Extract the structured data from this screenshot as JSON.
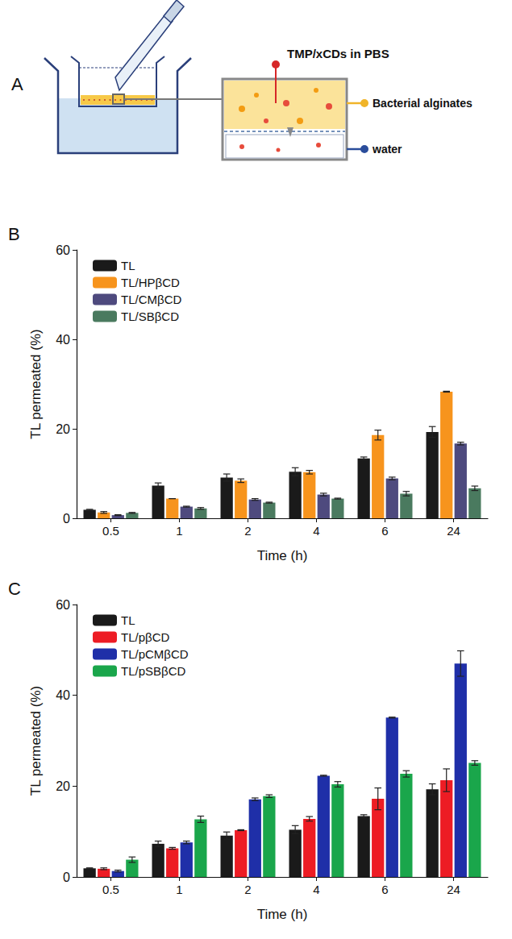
{
  "diagram": {
    "panel_label": "A",
    "labels": {
      "donor": "TMP/xCDs in PBS",
      "membrane": "Bacterial alginates",
      "receiver": "water"
    }
  },
  "chart_data": [
    {
      "type": "bar",
      "panel_label": "B",
      "categories": [
        "0.5",
        "1",
        "2",
        "4",
        "6",
        "24"
      ],
      "xlabel": "Time (h)",
      "ylabel": "TL permeated (%)",
      "ylim": [
        0,
        60
      ],
      "yticks": [
        0,
        20,
        40,
        60
      ],
      "grid": false,
      "legend": "upper left",
      "series": [
        {
          "name": "TL",
          "color": "#1a1a1a",
          "values": [
            1.9,
            7.3,
            9.1,
            10.4,
            13.4,
            19.3
          ],
          "errors": [
            0.1,
            0.6,
            0.8,
            0.9,
            0.3,
            1.2
          ]
        },
        {
          "name": "TL/HPβCD",
          "color": "#f7941d",
          "values": [
            1.3,
            4.4,
            8.4,
            10.3,
            18.6,
            28.3
          ],
          "errors": [
            0.2,
            0.0,
            0.4,
            0.4,
            1.1,
            0.1
          ]
        },
        {
          "name": "TL/CMβCD",
          "color": "#4e4a7e",
          "values": [
            0.7,
            2.6,
            4.2,
            5.3,
            8.9,
            16.7
          ],
          "errors": [
            0.1,
            0.1,
            0.2,
            0.3,
            0.3,
            0.3
          ]
        },
        {
          "name": "TL/SBβCD",
          "color": "#4a7a5f",
          "values": [
            1.2,
            2.2,
            3.5,
            4.4,
            5.5,
            6.7
          ],
          "errors": [
            0.1,
            0.2,
            0.1,
            0.1,
            0.5,
            0.5
          ]
        }
      ]
    },
    {
      "type": "bar",
      "panel_label": "C",
      "categories": [
        "0.5",
        "1",
        "2",
        "4",
        "6",
        "24"
      ],
      "xlabel": "Time (h)",
      "ylabel": "TL permeated (%)",
      "ylim": [
        0,
        60
      ],
      "yticks": [
        0,
        20,
        40,
        60
      ],
      "grid": false,
      "legend": "upper left",
      "series": [
        {
          "name": "TL",
          "color": "#1a1a1a",
          "values": [
            1.9,
            7.3,
            9.1,
            10.4,
            13.4,
            19.3
          ],
          "errors": [
            0.1,
            0.6,
            0.8,
            0.9,
            0.3,
            1.2
          ]
        },
        {
          "name": "TL/pβCD",
          "color": "#ed1c24",
          "values": [
            1.8,
            6.3,
            10.3,
            12.8,
            17.2,
            21.3
          ],
          "errors": [
            0.2,
            0.2,
            0.1,
            0.5,
            2.4,
            2.5
          ]
        },
        {
          "name": "TL/pCMβCD",
          "color": "#1f2fa8",
          "values": [
            1.3,
            7.6,
            17.1,
            22.3,
            35.1,
            47.0
          ],
          "errors": [
            0.2,
            0.3,
            0.3,
            0.1,
            0.1,
            2.8
          ]
        },
        {
          "name": "TL/pSBβCD",
          "color": "#1aa64b",
          "values": [
            3.8,
            12.7,
            17.8,
            20.4,
            22.7,
            25.1
          ],
          "errors": [
            0.6,
            0.7,
            0.3,
            0.6,
            0.7,
            0.5
          ]
        }
      ]
    }
  ]
}
